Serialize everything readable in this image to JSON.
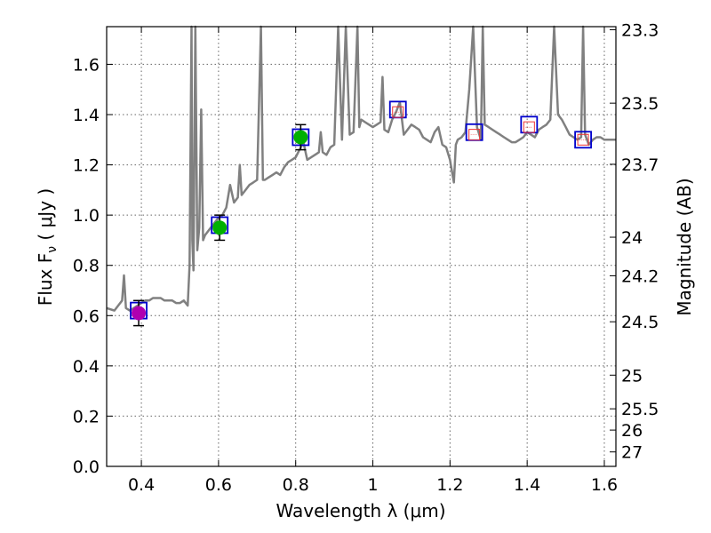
{
  "chart_data": {
    "type": "line",
    "title": "",
    "xlabel": "Wavelength  λ (μm)",
    "ylabel": "Flux  F",
    "ylabel_sub": "ν",
    "ylabel_units": "  ( μJy )",
    "y2label": "Magnitude (AB)",
    "xlim": [
      0.31,
      1.63
    ],
    "ylim": [
      0.0,
      1.75
    ],
    "grid": true,
    "xticks": [
      0.4,
      0.6,
      0.8,
      1.0,
      1.2,
      1.4,
      1.6
    ],
    "xtick_labels": [
      "0.4",
      "0.6",
      "0.8",
      "1",
      "1.2",
      "1.4",
      "1.6"
    ],
    "yticks": [
      0.0,
      0.2,
      0.4,
      0.6,
      0.8,
      1.0,
      1.2,
      1.4,
      1.6
    ],
    "ytick_labels": [
      "0.0",
      "0.2",
      "0.4",
      "0.6",
      "0.8",
      "1.0",
      "1.2",
      "1.4",
      "1.6"
    ],
    "y2ticks": [
      {
        "mag": 23.3,
        "label": "23.3"
      },
      {
        "mag": 23.5,
        "label": "23.5"
      },
      {
        "mag": 23.7,
        "label": "23.7"
      },
      {
        "mag": 24.0,
        "label": "24"
      },
      {
        "mag": 24.2,
        "label": "24.2"
      },
      {
        "mag": 24.5,
        "label": "24.5"
      },
      {
        "mag": 25.0,
        "label": "25"
      },
      {
        "mag": 25.5,
        "label": "25.5"
      },
      {
        "mag": 26.0,
        "label": "26"
      },
      {
        "mag": 27.0,
        "label": "27"
      }
    ],
    "colors": {
      "spectrum": "#808080",
      "model_box": "#0000cc",
      "observed_errorbar": "#000000",
      "optical_point": "#00b000",
      "uv_point": "#b000b0",
      "ir_upper": "#ee3333",
      "grid": "#666666"
    },
    "series": [
      {
        "name": "model spectrum",
        "x": [
          0.31,
          0.33,
          0.34,
          0.35,
          0.355,
          0.36,
          0.37,
          0.38,
          0.39,
          0.4,
          0.41,
          0.42,
          0.43,
          0.44,
          0.45,
          0.46,
          0.47,
          0.48,
          0.49,
          0.5,
          0.51,
          0.52,
          0.525,
          0.53,
          0.532,
          0.535,
          0.54,
          0.545,
          0.55,
          0.555,
          0.56,
          0.565,
          0.57,
          0.58,
          0.59,
          0.6,
          0.61,
          0.62,
          0.63,
          0.64,
          0.65,
          0.655,
          0.66,
          0.67,
          0.68,
          0.69,
          0.7,
          0.71,
          0.715,
          0.72,
          0.73,
          0.74,
          0.75,
          0.76,
          0.77,
          0.78,
          0.79,
          0.8,
          0.81,
          0.82,
          0.83,
          0.84,
          0.85,
          0.86,
          0.865,
          0.87,
          0.88,
          0.89,
          0.9,
          0.91,
          0.92,
          0.93,
          0.94,
          0.95,
          0.96,
          0.965,
          0.97,
          0.98,
          0.99,
          1.0,
          1.01,
          1.02,
          1.025,
          1.03,
          1.04,
          1.05,
          1.06,
          1.07,
          1.08,
          1.09,
          1.1,
          1.11,
          1.12,
          1.13,
          1.14,
          1.15,
          1.16,
          1.17,
          1.18,
          1.19,
          1.2,
          1.21,
          1.215,
          1.22,
          1.23,
          1.24,
          1.25,
          1.26,
          1.27,
          1.28,
          1.285,
          1.29,
          1.3,
          1.31,
          1.32,
          1.33,
          1.34,
          1.35,
          1.36,
          1.37,
          1.38,
          1.39,
          1.4,
          1.41,
          1.42,
          1.43,
          1.44,
          1.45,
          1.46,
          1.47,
          1.48,
          1.49,
          1.5,
          1.51,
          1.52,
          1.53,
          1.54,
          1.545,
          1.55,
          1.56,
          1.57,
          1.58,
          1.59,
          1.6,
          1.61,
          1.62,
          1.63
        ],
        "y": [
          0.63,
          0.62,
          0.64,
          0.66,
          0.76,
          0.63,
          0.62,
          0.63,
          0.64,
          0.65,
          0.66,
          0.66,
          0.67,
          0.67,
          0.67,
          0.66,
          0.66,
          0.66,
          0.65,
          0.65,
          0.66,
          0.64,
          0.8,
          1.75,
          0.9,
          0.78,
          1.75,
          0.86,
          0.95,
          1.42,
          0.9,
          0.92,
          0.93,
          0.95,
          0.97,
          0.99,
          1.0,
          1.03,
          1.12,
          1.05,
          1.07,
          1.2,
          1.08,
          1.1,
          1.12,
          1.13,
          1.14,
          1.75,
          1.14,
          1.14,
          1.15,
          1.16,
          1.17,
          1.16,
          1.19,
          1.21,
          1.22,
          1.23,
          1.26,
          1.29,
          1.22,
          1.23,
          1.24,
          1.25,
          1.33,
          1.25,
          1.24,
          1.27,
          1.28,
          1.75,
          1.3,
          1.75,
          1.32,
          1.33,
          1.75,
          1.35,
          1.38,
          1.37,
          1.36,
          1.35,
          1.36,
          1.37,
          1.55,
          1.34,
          1.33,
          1.38,
          1.41,
          1.45,
          1.32,
          1.34,
          1.36,
          1.35,
          1.34,
          1.31,
          1.3,
          1.29,
          1.33,
          1.35,
          1.28,
          1.27,
          1.22,
          1.13,
          1.28,
          1.3,
          1.31,
          1.33,
          1.5,
          1.75,
          1.35,
          1.3,
          1.75,
          1.36,
          1.35,
          1.34,
          1.33,
          1.32,
          1.31,
          1.3,
          1.29,
          1.29,
          1.3,
          1.31,
          1.33,
          1.32,
          1.31,
          1.34,
          1.35,
          1.36,
          1.38,
          1.75,
          1.4,
          1.38,
          1.35,
          1.32,
          1.31,
          1.3,
          1.31,
          1.75,
          1.32,
          1.28,
          1.3,
          1.31,
          1.31,
          1.3,
          1.3,
          1.3,
          1.3
        ]
      },
      {
        "name": "model photometry (blue boxes)",
        "x": [
          0.393,
          0.603,
          0.813,
          1.065,
          1.263,
          1.405,
          1.545
        ],
        "y": [
          0.62,
          0.96,
          1.31,
          1.42,
          1.33,
          1.36,
          1.3
        ]
      },
      {
        "name": "observed UV point",
        "x": [
          0.393
        ],
        "y": [
          0.61
        ],
        "yerr": [
          0.05
        ]
      },
      {
        "name": "observed optical points",
        "x": [
          0.603,
          0.813
        ],
        "y": [
          0.95,
          1.31
        ],
        "yerr": [
          0.05,
          0.05
        ]
      },
      {
        "name": "observed IR points (open squares)",
        "x": [
          1.065,
          1.263,
          1.405,
          1.545
        ],
        "y": [
          1.41,
          1.32,
          1.35,
          1.3
        ]
      }
    ]
  }
}
